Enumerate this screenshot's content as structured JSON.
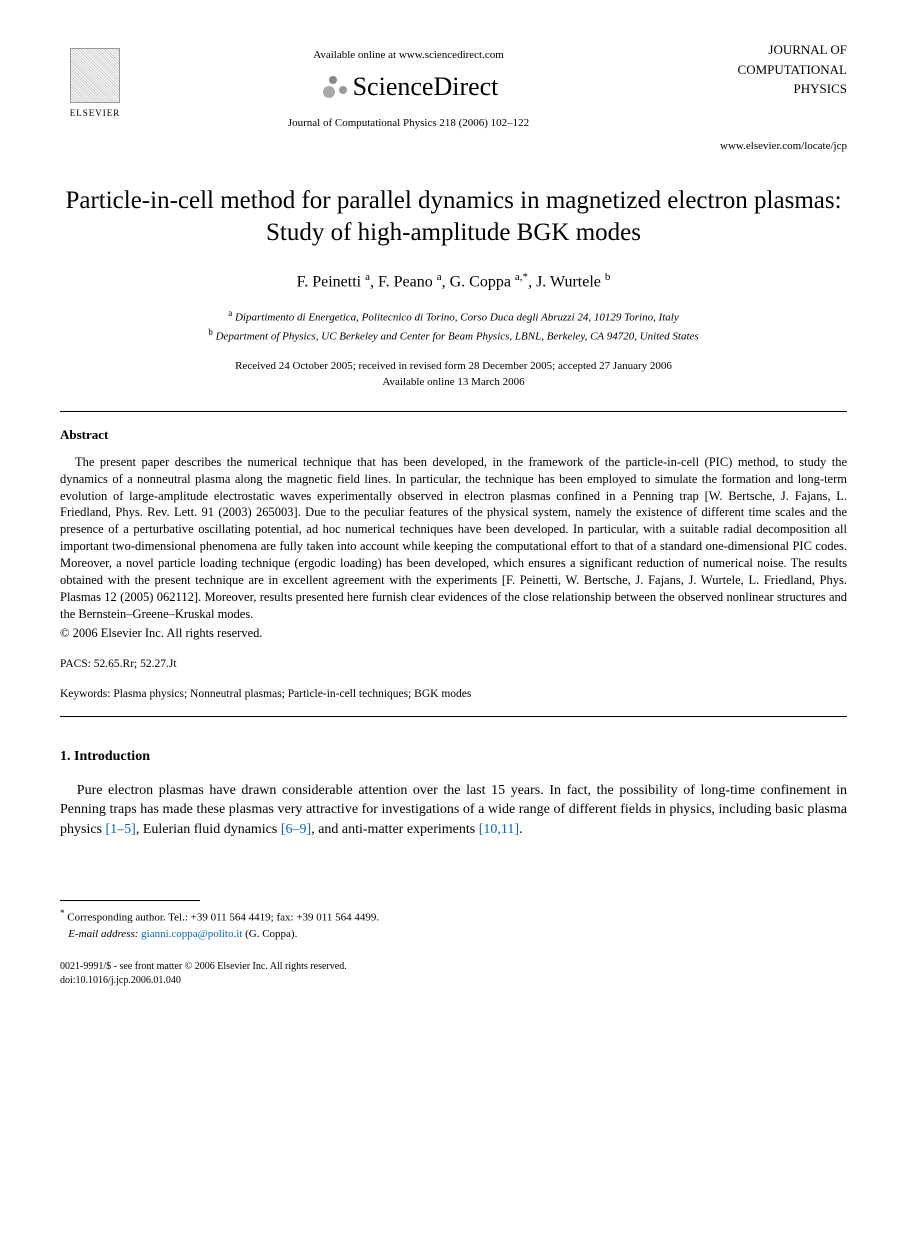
{
  "header": {
    "publisher_name": "ELSEVIER",
    "available_text": "Available online at www.sciencedirect.com",
    "platform_name": "ScienceDirect",
    "journal_ref": "Journal of Computational Physics 218 (2006) 102–122",
    "journal_name_l1": "JOURNAL OF",
    "journal_name_l2": "COMPUTATIONAL",
    "journal_name_l3": "PHYSICS",
    "journal_url": "www.elsevier.com/locate/jcp"
  },
  "title": "Particle-in-cell method for parallel dynamics in magnetized electron plasmas: Study of high-amplitude BGK modes",
  "authors": {
    "a1_name": "F. Peinetti",
    "a1_aff": "a",
    "a2_name": "F. Peano",
    "a2_aff": "a",
    "a3_name": "G. Coppa",
    "a3_aff": "a,*",
    "a4_name": "J. Wurtele",
    "a4_aff": "b"
  },
  "affiliations": {
    "a_sup": "a",
    "a_text": "Dipartimento di Energetica, Politecnico di Torino, Corso Duca degli Abruzzi 24, 10129 Torino, Italy",
    "b_sup": "b",
    "b_text": "Department of Physics, UC Berkeley and Center for Beam Physics, LBNL, Berkeley, CA 94720, United States"
  },
  "dates": {
    "line1": "Received 24 October 2005; received in revised form 28 December 2005; accepted 27 January 2006",
    "line2": "Available online 13 March 2006"
  },
  "abstract": {
    "heading": "Abstract",
    "text": "The present paper describes the numerical technique that has been developed, in the framework of the particle-in-cell (PIC) method, to study the dynamics of a nonneutral plasma along the magnetic field lines. In particular, the technique has been employed to simulate the formation and long-term evolution of large-amplitude electrostatic waves experimentally observed in electron plasmas confined in a Penning trap [W. Bertsche, J. Fajans, L. Friedland, Phys. Rev. Lett. 91 (2003) 265003]. Due to the peculiar features of the physical system, namely the existence of different time scales and the presence of a perturbative oscillating potential, ad hoc numerical techniques have been developed. In particular, with a suitable radial decomposition all important two-dimensional phenomena are fully taken into account while keeping the computational effort to that of a standard one-dimensional PIC codes. Moreover, a novel particle loading technique (ergodic loading) has been developed, which ensures a significant reduction of numerical noise. The results obtained with the present technique are in excellent agreement with the experiments [F. Peinetti, W. Bertsche, J. Fajans, J. Wurtele, L. Friedland, Phys. Plasmas 12 (2005) 062112]. Moreover, results presented here furnish clear evidences of the close relationship between the observed nonlinear structures and the Bernstein–Greene–Kruskal modes.",
    "copyright": "© 2006 Elsevier Inc. All rights reserved."
  },
  "pacs": {
    "label": "PACS:",
    "values": "52.65.Rr; 52.27.Jt"
  },
  "keywords": {
    "label": "Keywords:",
    "values": "Plasma physics; Nonneutral plasmas; Particle-in-cell techniques; BGK modes"
  },
  "introduction": {
    "heading": "1. Introduction",
    "text_pre": "Pure electron plasmas have drawn considerable attention over the last 15 years. In fact, the possibility of long-time confinement in Penning traps has made these plasmas very attractive for investigations of a wide range of different fields in physics, including basic plasma physics ",
    "ref1": "[1–5]",
    "text_mid1": ", Eulerian fluid dynamics ",
    "ref2": "[6–9]",
    "text_mid2": ", and anti-matter experiments ",
    "ref3": "[10,11]",
    "text_post": "."
  },
  "footnote": {
    "corr_label": "Corresponding author. Tel.: +39 011 564 4419; fax: +39 011 564 4499.",
    "email_label": "E-mail address:",
    "email": "gianni.coppa@polito.it",
    "email_name": "(G. Coppa)."
  },
  "footer": {
    "line1": "0021-9991/$ - see front matter © 2006 Elsevier Inc. All rights reserved.",
    "line2": "doi:10.1016/j.jcp.2006.01.040"
  },
  "colors": {
    "link": "#0066cc",
    "text": "#000000",
    "background": "#ffffff"
  }
}
